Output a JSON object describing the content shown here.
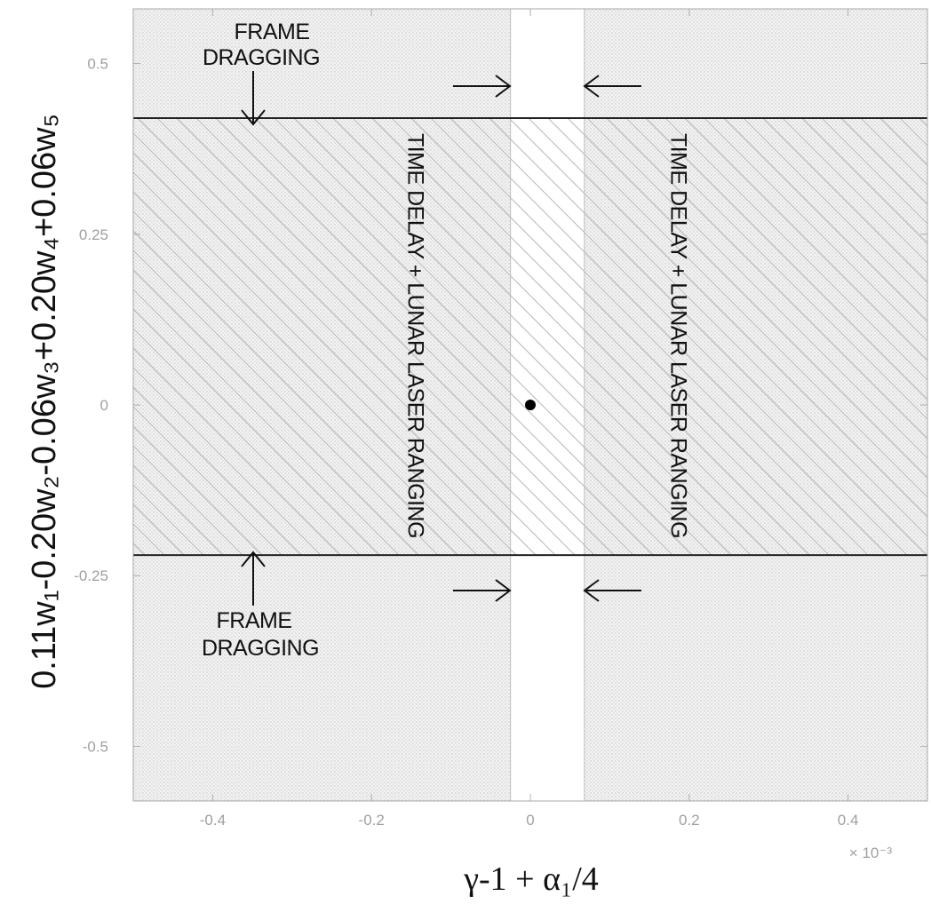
{
  "chart_data": {
    "type": "region",
    "xlabel": "γ-1 + α₁/4",
    "ylabel": "0.11w₁-0.20w₂-0.06w₃+0.20w₄+0.06w₅",
    "x_multiplier": "× 10⁻³",
    "xlim": [
      -0.0005,
      0.0005
    ],
    "ylim": [
      -0.58,
      0.58
    ],
    "x_ticks": [
      {
        "value": -0.0004,
        "label": "-0.4"
      },
      {
        "value": -0.0002,
        "label": "-0.2"
      },
      {
        "value": 0,
        "label": "0"
      },
      {
        "value": 0.0002,
        "label": "0.2"
      },
      {
        "value": 0.0004,
        "label": "0.4"
      }
    ],
    "y_ticks": [
      {
        "value": 0.5,
        "label": "0.5"
      },
      {
        "value": 0.25,
        "label": "0.25"
      },
      {
        "value": 0,
        "label": "0"
      },
      {
        "value": -0.25,
        "label": "-0.25"
      },
      {
        "value": -0.5,
        "label": "-0.5"
      }
    ],
    "frame_dragging_band": {
      "y_min": -0.22,
      "y_max": 0.42
    },
    "time_delay_band": {
      "x_min": -2.5e-05,
      "x_max": 6.8e-05
    },
    "point": {
      "x": 0,
      "y": 0
    },
    "annotations": {
      "frame_dragging_top": [
        "FRAME",
        "DRAGGING"
      ],
      "frame_dragging_bottom": [
        "FRAME",
        "DRAGGING"
      ],
      "time_delay_left": "TIME DELAY + LUNAR LASER RANGING",
      "time_delay_right": "TIME DELAY + LUNAR LASER RANGING"
    }
  }
}
